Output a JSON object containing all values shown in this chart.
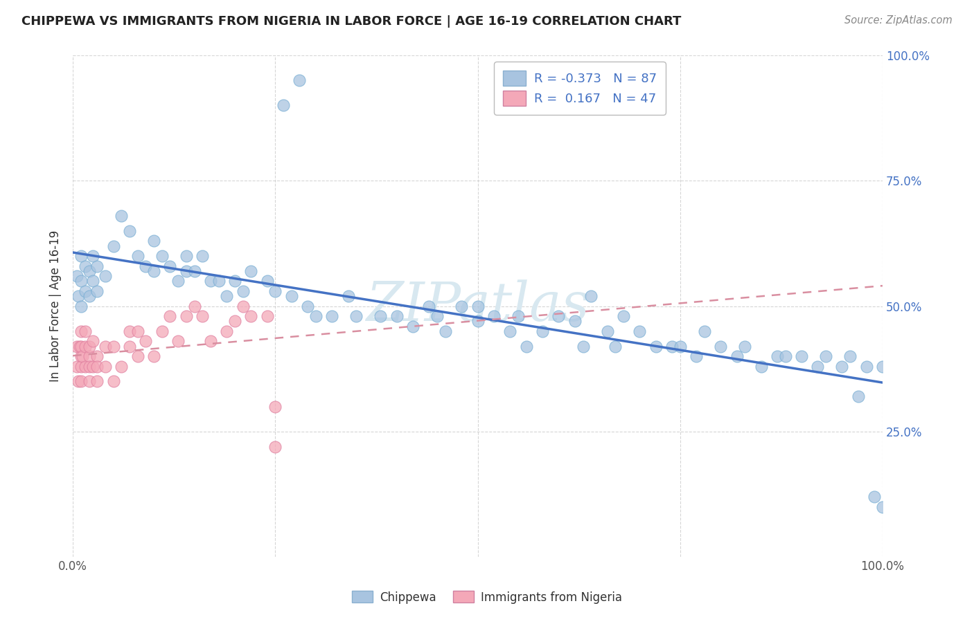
{
  "title": "CHIPPEWA VS IMMIGRANTS FROM NIGERIA IN LABOR FORCE | AGE 16-19 CORRELATION CHART",
  "source_text": "Source: ZipAtlas.com",
  "ylabel": "In Labor Force | Age 16-19",
  "background_color": "#ffffff",
  "watermark_text": "ZIPatlas",
  "legend_R1": "-0.373",
  "legend_N1": "87",
  "legend_R2": "0.167",
  "legend_N2": "47",
  "chippewa_color": "#a8c4e0",
  "nigeria_color": "#f4a8b8",
  "trend_color_chippewa": "#4472c4",
  "trend_color_nigeria": "#d98ea0",
  "chippewa_x": [
    0.005,
    0.007,
    0.01,
    0.01,
    0.01,
    0.015,
    0.015,
    0.02,
    0.02,
    0.025,
    0.025,
    0.03,
    0.03,
    0.04,
    0.05,
    0.06,
    0.07,
    0.08,
    0.09,
    0.1,
    0.1,
    0.11,
    0.12,
    0.13,
    0.14,
    0.14,
    0.15,
    0.16,
    0.17,
    0.18,
    0.19,
    0.2,
    0.21,
    0.22,
    0.24,
    0.25,
    0.27,
    0.29,
    0.3,
    0.32,
    0.34,
    0.35,
    0.38,
    0.4,
    0.42,
    0.44,
    0.45,
    0.46,
    0.48,
    0.5,
    0.5,
    0.52,
    0.54,
    0.55,
    0.56,
    0.58,
    0.6,
    0.62,
    0.63,
    0.64,
    0.66,
    0.67,
    0.68,
    0.7,
    0.72,
    0.74,
    0.75,
    0.77,
    0.78,
    0.8,
    0.82,
    0.83,
    0.85,
    0.87,
    0.88,
    0.9,
    0.92,
    0.93,
    0.95,
    0.96,
    0.97,
    0.98,
    0.99,
    1.0,
    1.0,
    0.26,
    0.28
  ],
  "chippewa_y": [
    0.56,
    0.52,
    0.6,
    0.55,
    0.5,
    0.58,
    0.53,
    0.57,
    0.52,
    0.6,
    0.55,
    0.58,
    0.53,
    0.56,
    0.62,
    0.68,
    0.65,
    0.6,
    0.58,
    0.63,
    0.57,
    0.6,
    0.58,
    0.55,
    0.6,
    0.57,
    0.57,
    0.6,
    0.55,
    0.55,
    0.52,
    0.55,
    0.53,
    0.57,
    0.55,
    0.53,
    0.52,
    0.5,
    0.48,
    0.48,
    0.52,
    0.48,
    0.48,
    0.48,
    0.46,
    0.5,
    0.48,
    0.45,
    0.5,
    0.5,
    0.47,
    0.48,
    0.45,
    0.48,
    0.42,
    0.45,
    0.48,
    0.47,
    0.42,
    0.52,
    0.45,
    0.42,
    0.48,
    0.45,
    0.42,
    0.42,
    0.42,
    0.4,
    0.45,
    0.42,
    0.4,
    0.42,
    0.38,
    0.4,
    0.4,
    0.4,
    0.38,
    0.4,
    0.38,
    0.4,
    0.32,
    0.38,
    0.12,
    0.38,
    0.1,
    0.9,
    0.95
  ],
  "nigeria_x": [
    0.005,
    0.005,
    0.007,
    0.008,
    0.01,
    0.01,
    0.01,
    0.01,
    0.01,
    0.012,
    0.015,
    0.015,
    0.015,
    0.02,
    0.02,
    0.02,
    0.02,
    0.025,
    0.025,
    0.03,
    0.03,
    0.03,
    0.04,
    0.04,
    0.05,
    0.05,
    0.06,
    0.07,
    0.07,
    0.08,
    0.08,
    0.09,
    0.1,
    0.11,
    0.12,
    0.13,
    0.14,
    0.15,
    0.16,
    0.17,
    0.19,
    0.2,
    0.21,
    0.22,
    0.24,
    0.25,
    0.25
  ],
  "nigeria_y": [
    0.42,
    0.38,
    0.35,
    0.42,
    0.4,
    0.38,
    0.35,
    0.42,
    0.45,
    0.4,
    0.38,
    0.42,
    0.45,
    0.4,
    0.38,
    0.42,
    0.35,
    0.43,
    0.38,
    0.4,
    0.38,
    0.35,
    0.42,
    0.38,
    0.42,
    0.35,
    0.38,
    0.45,
    0.42,
    0.45,
    0.4,
    0.43,
    0.4,
    0.45,
    0.48,
    0.43,
    0.48,
    0.5,
    0.48,
    0.43,
    0.45,
    0.47,
    0.5,
    0.48,
    0.48,
    0.22,
    0.3
  ],
  "xlim": [
    0.0,
    1.0
  ],
  "ylim": [
    0.0,
    1.0
  ],
  "ytick_positions": [
    0.25,
    0.5,
    0.75,
    1.0
  ],
  "ytick_labels_right": [
    "25.0%",
    "50.0%",
    "75.0%",
    "100.0%"
  ],
  "xtick_positions": [
    0.0,
    0.25,
    0.5,
    0.75,
    1.0
  ],
  "xtick_labels": [
    "0.0%",
    "",
    "",
    "",
    "100.0%"
  ],
  "legend_bottom": [
    "Chippewa",
    "Immigrants from Nigeria"
  ]
}
